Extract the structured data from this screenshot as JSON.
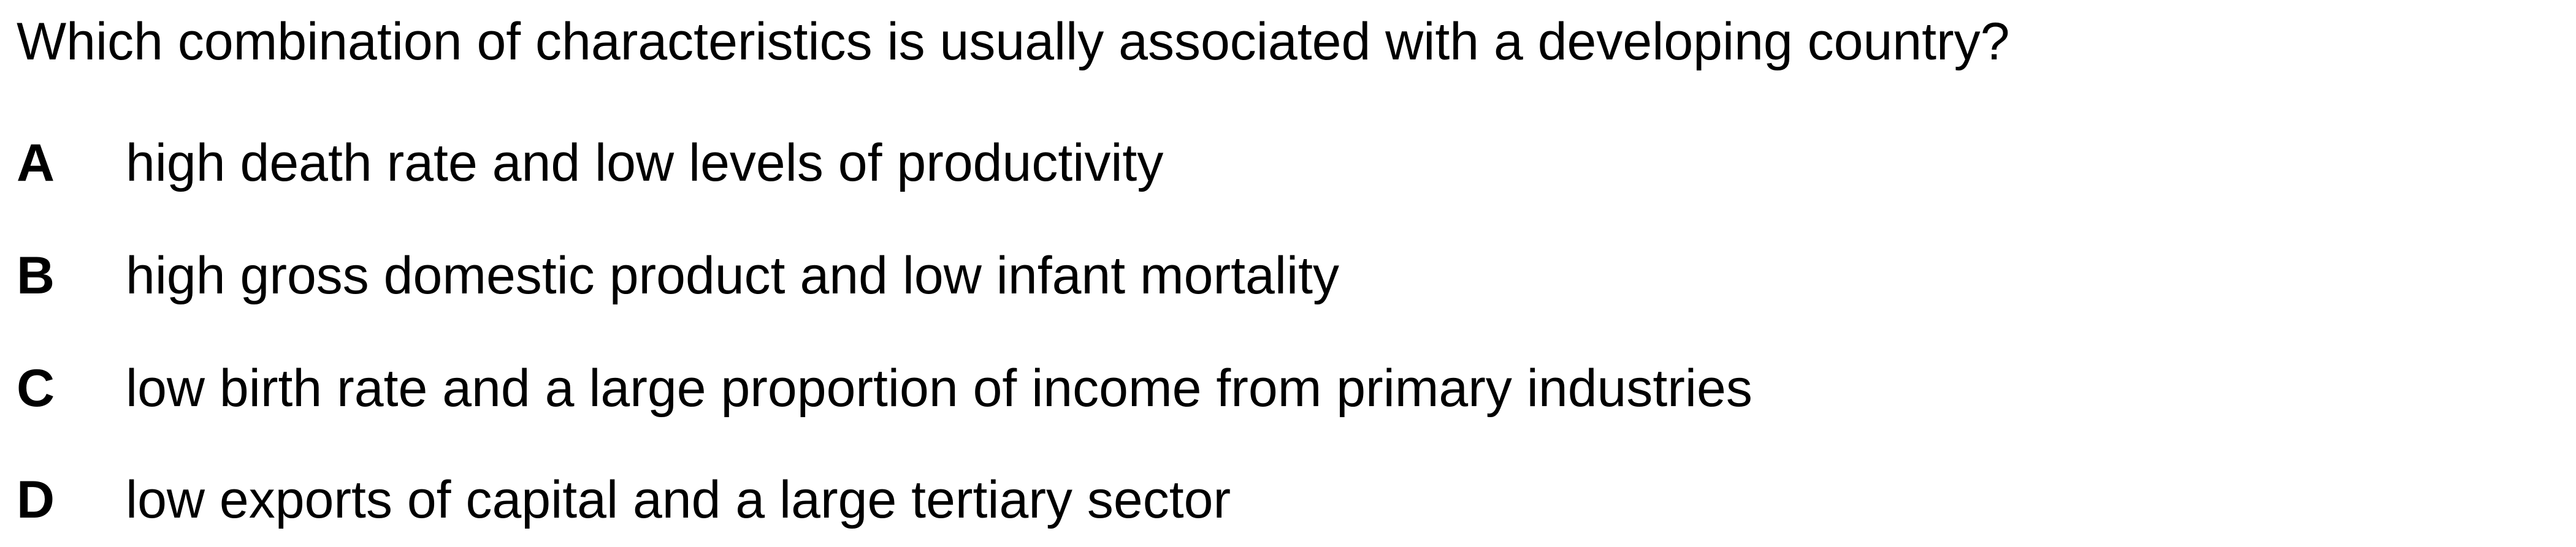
{
  "question": "Which combination of characteristics is usually associated with a developing country?",
  "options": [
    {
      "letter": "A",
      "text": "high death rate and low levels of productivity"
    },
    {
      "letter": "B",
      "text": "high gross domestic product and low infant mortality"
    },
    {
      "letter": "C",
      "text": "low birth rate and a large proportion of income from primary industries"
    },
    {
      "letter": "D",
      "text": "low exports of capital and a large tertiary sector"
    }
  ]
}
